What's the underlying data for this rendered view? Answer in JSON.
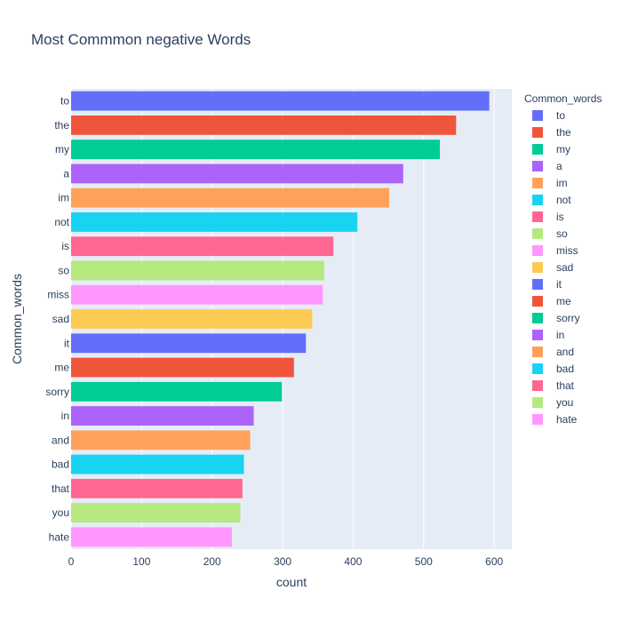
{
  "chart_data": {
    "type": "bar",
    "orientation": "horizontal",
    "title": "Most Commmon negative Words",
    "xlabel": "count",
    "ylabel": "Common_words",
    "legend_title": "Common_words",
    "legend_position": "right",
    "xlim": [
      0,
      625
    ],
    "xticks": [
      0,
      100,
      200,
      300,
      400,
      500,
      600
    ],
    "grid": true,
    "categories": [
      "to",
      "the",
      "my",
      "a",
      "im",
      "not",
      "is",
      "so",
      "miss",
      "sad",
      "it",
      "me",
      "sorry",
      "in",
      "and",
      "bad",
      "that",
      "you",
      "hate"
    ],
    "values": [
      593,
      546,
      523,
      471,
      451,
      406,
      372,
      359,
      357,
      342,
      333,
      316,
      299,
      259,
      254,
      245,
      243,
      240,
      228
    ],
    "colors": [
      "#636efa",
      "#ef553b",
      "#00cc96",
      "#ab63fa",
      "#ffa15a",
      "#19d3f3",
      "#ff6692",
      "#b6e880",
      "#ff97ff",
      "#fecb52",
      "#636efa",
      "#ef553b",
      "#00cc96",
      "#ab63fa",
      "#ffa15a",
      "#19d3f3",
      "#ff6692",
      "#b6e880",
      "#ff97ff"
    ]
  },
  "style": {
    "plot_background": "#e5ecf6",
    "grid_color": "#ffffff",
    "text_color": "#2a3f5f"
  }
}
